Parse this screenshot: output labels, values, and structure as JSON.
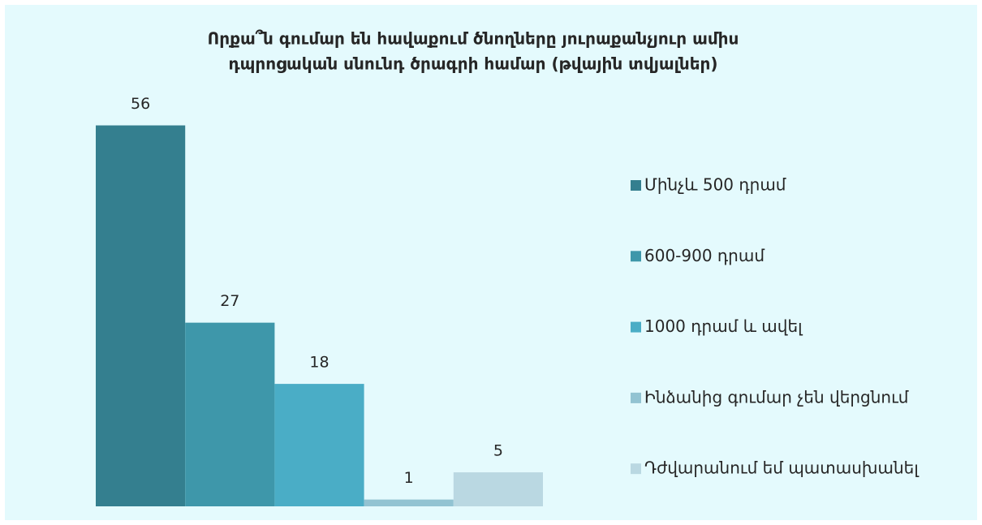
{
  "chart_data": {
    "type": "bar",
    "title": [
      "Որքա՞ն գումար են հավաքում ծնողները  յուրաքանչյուր ամիս",
      "դպրոցական սնունդ ծրագրի համար (թվային տվյալներ)"
    ],
    "categories": [
      null
    ],
    "series": [
      {
        "name": "Մինչև 500 դրամ",
        "color": "#347f8f",
        "values": [
          56
        ]
      },
      {
        "name": "600-900 դրամ",
        "color": "#3e97aa",
        "values": [
          27
        ]
      },
      {
        "name": "1000 դրամ և ավել",
        "color": "#4aadc6",
        "values": [
          18
        ]
      },
      {
        "name": "Ինձանից գումար չեն վերցնում",
        "color": "#92c3d2",
        "values": [
          1
        ]
      },
      {
        "name": "Դժվարանում եմ պատասխանել",
        "color": "#bad8e2",
        "values": [
          5
        ]
      }
    ],
    "ylim": [
      0,
      60
    ],
    "legend": "right"
  }
}
